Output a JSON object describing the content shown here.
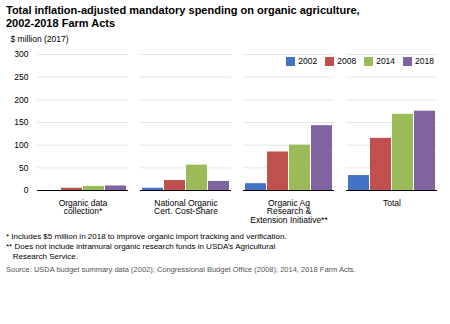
{
  "chart_data": {
    "type": "bar",
    "title": "Total inflation-adjusted mandatory spending on organic agriculture,\n2002-2018 Farm Acts",
    "ylabel": "$ million (2017)",
    "categories": [
      "Organic data\ncollection*",
      "National Organic\nCert. Cost-Share",
      "Organic Ag\nResearch &\nExtension Initiative**",
      "Total"
    ],
    "series": [
      {
        "name": "2002",
        "color": "#4472c4",
        "values": [
          0,
          5,
          15,
          33
        ]
      },
      {
        "name": "2008",
        "color": "#c0504d",
        "values": [
          5,
          22,
          85,
          115
        ]
      },
      {
        "name": "2014",
        "color": "#9bbb59",
        "values": [
          9,
          56,
          100,
          168
        ]
      },
      {
        "name": "2018",
        "color": "#8064a2",
        "values": [
          10,
          20,
          143,
          175
        ]
      }
    ],
    "ylim": [
      0,
      300
    ],
    "yticks": [
      0,
      50,
      100,
      150,
      200,
      250,
      300
    ],
    "grid": true,
    "legend": "upper right",
    "annotations": [
      "* Includes $5 million in 2018 to improve organic import tracking and verification.",
      "** Does not include intramural organic research funds in USDA’s Agricultural\n   Research Service.",
      "Source: USDA budget summary data (2002); Congressional Budget Office (2008); 2014, 2018 Farm Acts."
    ]
  }
}
